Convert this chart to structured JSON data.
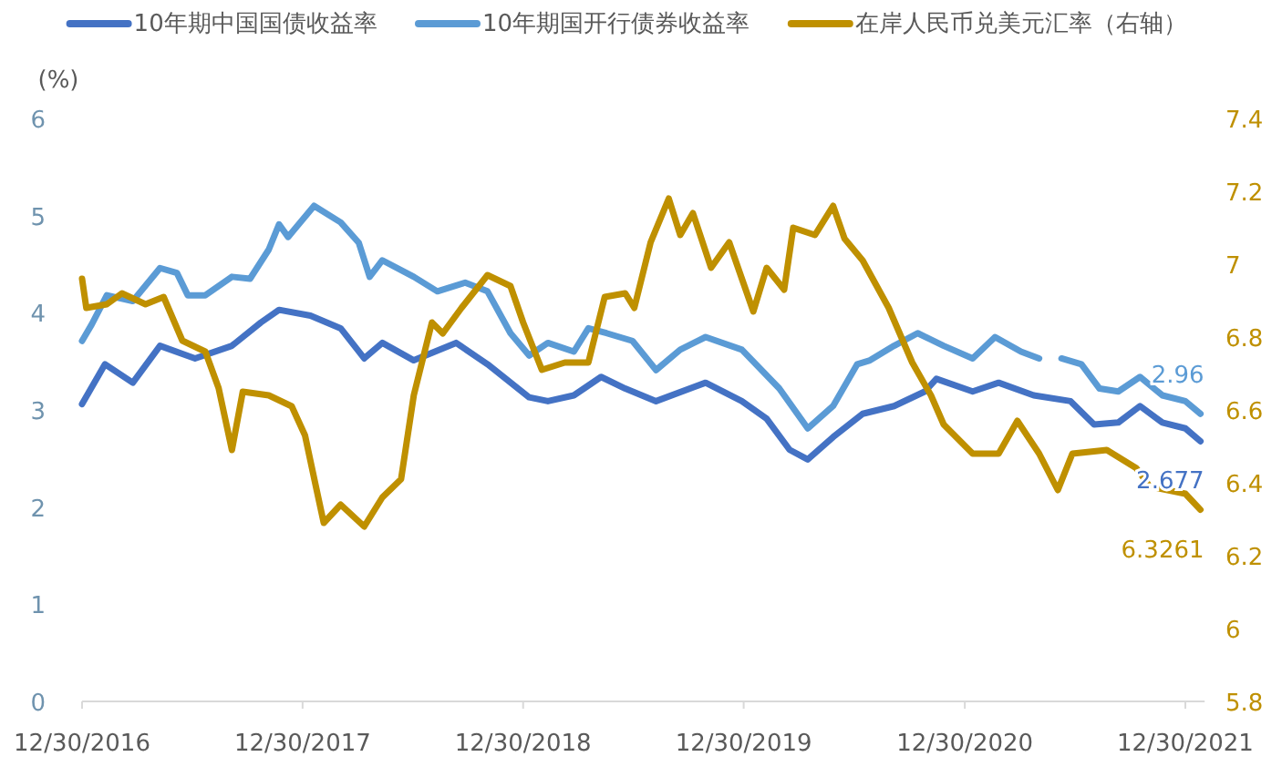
{
  "chart_data": {
    "type": "line",
    "ylabel": "(%)",
    "legend": "top",
    "xlim": [
      "2016-12-30",
      "2022-01-31"
    ],
    "xticks": [
      {
        "value": "2016-12-30",
        "label": "12/30/2016"
      },
      {
        "value": "2017-12-30",
        "label": "12/30/2017"
      },
      {
        "value": "2018-12-30",
        "label": "12/30/2018"
      },
      {
        "value": "2019-12-30",
        "label": "12/30/2019"
      },
      {
        "value": "2020-12-30",
        "label": "12/30/2020"
      },
      {
        "value": "2021-12-30",
        "label": "12/30/2021"
      }
    ],
    "ylim": [
      0,
      6
    ],
    "yticks": [
      0,
      1,
      2,
      3,
      4,
      5,
      6
    ],
    "y2lim": [
      5.8,
      7.4
    ],
    "y2ticks": [
      5.8,
      6,
      6.2,
      6.4,
      6.6,
      6.8,
      7,
      7.2,
      7.4
    ],
    "series": [
      {
        "name": "10年期中国国债收益率",
        "color": "#4472c4",
        "x": [
          "2016-12-30",
          "2017-02-06",
          "2017-03-24",
          "2017-05-08",
          "2017-07-05",
          "2017-09-04",
          "2017-10-22",
          "2017-11-21",
          "2018-01-12",
          "2018-03-03",
          "2018-04-11",
          "2018-05-11",
          "2018-07-02",
          "2018-09-10",
          "2018-11-01",
          "2019-01-09",
          "2019-02-09",
          "2019-03-24",
          "2019-05-08",
          "2019-06-17",
          "2019-08-07",
          "2019-10-28",
          "2019-12-27",
          "2020-02-06",
          "2020-03-15",
          "2020-04-14",
          "2020-05-26",
          "2020-07-14",
          "2020-09-04",
          "2020-10-25",
          "2020-11-13",
          "2021-01-12",
          "2021-02-24",
          "2021-04-23",
          "2021-06-23",
          "2021-08-01",
          "2021-09-10",
          "2021-10-16",
          "2021-11-22",
          "2021-12-30",
          "2022-01-24"
        ],
        "values": [
          3.06,
          3.47,
          3.28,
          3.66,
          3.53,
          3.66,
          3.9,
          4.03,
          3.97,
          3.84,
          3.53,
          3.69,
          3.51,
          3.69,
          3.47,
          3.13,
          3.09,
          3.15,
          3.34,
          3.22,
          3.09,
          3.28,
          3.09,
          2.91,
          2.59,
          2.49,
          2.72,
          2.96,
          3.04,
          3.19,
          3.32,
          3.19,
          3.28,
          3.15,
          3.09,
          2.85,
          2.87,
          3.04,
          2.87,
          2.81,
          2.677
        ],
        "value_labels": [
          null,
          null,
          null,
          null,
          null,
          null,
          null,
          null,
          null,
          null,
          null,
          null,
          null,
          null,
          null,
          null,
          null,
          null,
          null,
          null,
          null,
          null,
          null,
          null,
          null,
          null,
          null,
          null,
          null,
          null,
          null,
          null,
          null,
          null,
          null,
          null,
          null,
          null,
          null,
          null,
          "2.677"
        ]
      },
      {
        "name": "10年期国开行债券收益率",
        "color": "#5b9bd5",
        "x": [
          "2016-12-30",
          "2017-01-15",
          "2017-02-09",
          "2017-03-24",
          "2017-05-08",
          "2017-06-05",
          "2017-06-23",
          "2017-07-22",
          "2017-09-04",
          "2017-10-04",
          "2017-11-04",
          "2017-11-21",
          "2017-12-06",
          "2018-01-18",
          "2018-03-03",
          "2018-04-02",
          "2018-04-20",
          "2018-05-11",
          "2018-07-02",
          "2018-08-10",
          "2018-09-25",
          "2018-11-01",
          "2018-12-09",
          "2019-01-09",
          "2019-02-09",
          "2019-03-24",
          "2019-04-17",
          "2019-05-17",
          "2019-06-29",
          "2019-08-07",
          "2019-09-16",
          "2019-10-28",
          "2019-12-27",
          "2020-02-27",
          "2020-04-14",
          "2020-05-26",
          "2020-07-05",
          "2020-07-26",
          "2020-09-04",
          "2020-10-13",
          "2020-11-25",
          "2021-01-12",
          "2021-02-18",
          "2021-04-02",
          "2021-05-02",
          "2021-05-20",
          "2021-06-08",
          "2021-07-11",
          "2021-08-10",
          "2021-09-10",
          "2021-10-16",
          "2021-11-22",
          "2021-12-30",
          "2022-01-24"
        ],
        "values": [
          3.71,
          3.88,
          4.18,
          4.12,
          4.46,
          4.41,
          4.18,
          4.18,
          4.37,
          4.35,
          4.65,
          4.91,
          4.78,
          5.1,
          4.93,
          4.72,
          4.37,
          4.54,
          4.37,
          4.22,
          4.31,
          4.22,
          3.79,
          3.56,
          3.69,
          3.6,
          3.84,
          3.79,
          3.71,
          3.41,
          3.62,
          3.75,
          3.62,
          3.22,
          2.81,
          3.04,
          3.47,
          3.51,
          3.66,
          3.79,
          3.66,
          3.53,
          3.75,
          3.6,
          3.53,
          null,
          3.53,
          3.47,
          3.22,
          3.19,
          3.34,
          3.15,
          3.09,
          2.96
        ],
        "value_labels": [
          null,
          null,
          null,
          null,
          null,
          null,
          null,
          null,
          null,
          null,
          null,
          null,
          null,
          null,
          null,
          null,
          null,
          null,
          null,
          null,
          null,
          null,
          null,
          null,
          null,
          null,
          null,
          null,
          null,
          null,
          null,
          null,
          null,
          null,
          null,
          null,
          null,
          null,
          null,
          null,
          null,
          null,
          null,
          null,
          null,
          null,
          null,
          null,
          null,
          null,
          null,
          null,
          null,
          "2.96"
        ]
      },
      {
        "name": "在岸人民币兑美元汇率（右轴）",
        "color": "#bf9000",
        "axis": "y2",
        "x": [
          "2016-12-30",
          "2017-01-06",
          "2017-02-09",
          "2017-03-06",
          "2017-04-14",
          "2017-05-14",
          "2017-06-14",
          "2017-07-22",
          "2017-08-13",
          "2017-09-04",
          "2017-09-22",
          "2017-11-04",
          "2017-12-12",
          "2018-01-03",
          "2018-01-21",
          "2018-02-03",
          "2018-03-03",
          "2018-04-11",
          "2018-05-11",
          "2018-06-11",
          "2018-07-02",
          "2018-08-01",
          "2018-08-19",
          "2018-09-19",
          "2018-11-01",
          "2018-12-09",
          "2018-12-30",
          "2019-01-30",
          "2019-03-09",
          "2019-04-17",
          "2019-05-14",
          "2019-06-17",
          "2019-07-02",
          "2019-07-29",
          "2019-08-28",
          "2019-09-16",
          "2019-10-07",
          "2019-11-06",
          "2019-12-06",
          "2020-01-15",
          "2020-02-06",
          "2020-03-06",
          "2020-03-21",
          "2020-04-26",
          "2020-05-26",
          "2020-06-14",
          "2020-07-14",
          "2020-08-26",
          "2020-10-04",
          "2020-11-04",
          "2020-11-25",
          "2021-01-12",
          "2021-02-24",
          "2021-03-27",
          "2021-05-02",
          "2021-06-02",
          "2021-06-26",
          "2021-08-22",
          "2021-10-10",
          "2021-11-01",
          "2021-12-30",
          "2022-01-24"
        ],
        "values": [
          6.96,
          6.88,
          6.89,
          6.92,
          6.89,
          6.91,
          6.79,
          6.76,
          6.66,
          6.49,
          6.65,
          6.64,
          6.61,
          6.53,
          6.39,
          6.29,
          6.34,
          6.28,
          6.36,
          6.41,
          6.64,
          6.84,
          6.81,
          6.88,
          6.97,
          6.94,
          6.84,
          6.71,
          6.73,
          6.73,
          6.91,
          6.92,
          6.88,
          7.06,
          7.18,
          7.08,
          7.14,
          6.99,
          7.06,
          6.87,
          6.99,
          6.93,
          7.1,
          7.08,
          7.16,
          7.07,
          7.01,
          6.88,
          6.73,
          6.64,
          6.56,
          6.48,
          6.48,
          6.57,
          6.48,
          6.38,
          6.48,
          6.49,
          6.44,
          6.39,
          6.37,
          6.3261
        ],
        "value_labels": [
          null,
          null,
          null,
          null,
          null,
          null,
          null,
          null,
          null,
          null,
          null,
          null,
          null,
          null,
          null,
          null,
          null,
          null,
          null,
          null,
          null,
          null,
          null,
          null,
          null,
          null,
          null,
          null,
          null,
          null,
          null,
          null,
          null,
          null,
          null,
          null,
          null,
          null,
          null,
          null,
          null,
          null,
          null,
          null,
          null,
          null,
          null,
          null,
          null,
          null,
          null,
          null,
          null,
          null,
          null,
          null,
          null,
          null,
          null,
          null,
          null,
          "6.3261"
        ]
      }
    ]
  }
}
